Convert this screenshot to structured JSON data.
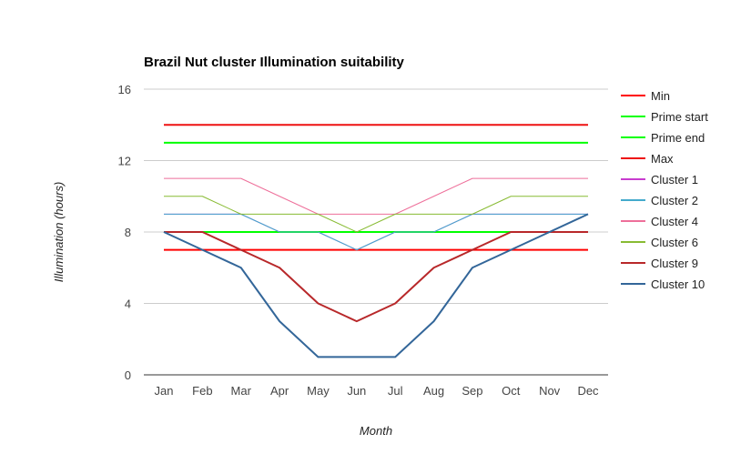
{
  "chart_data": {
    "type": "line",
    "title": "Brazil Nut cluster Illumination suitability",
    "xlabel": "Month",
    "ylabel": "Illumination (hours)",
    "ylim": [
      0,
      16
    ],
    "yticks": [
      "0",
      "4",
      "8",
      "12",
      "16"
    ],
    "grid": true,
    "legend_position": "right",
    "categories": [
      "Jan",
      "Feb",
      "Mar",
      "Apr",
      "May",
      "Jun",
      "Jul",
      "Aug",
      "Sep",
      "Oct",
      "Nov",
      "Dec"
    ],
    "series": [
      {
        "name": "Min",
        "color": "#ff0000",
        "width": 2,
        "values": [
          7,
          7,
          7,
          7,
          7,
          7,
          7,
          7,
          7,
          7,
          7,
          7
        ]
      },
      {
        "name": "Prime start",
        "color": "#00ff00",
        "width": 2,
        "values": [
          8,
          8,
          8,
          8,
          8,
          8,
          8,
          8,
          8,
          8,
          8,
          8
        ]
      },
      {
        "name": "Prime end",
        "color": "#00ff00",
        "width": 2,
        "values": [
          13,
          13,
          13,
          13,
          13,
          13,
          13,
          13,
          13,
          13,
          13,
          13
        ]
      },
      {
        "name": "Max",
        "color": "#ee1111",
        "width": 2,
        "values": [
          14,
          14,
          14,
          14,
          14,
          14,
          14,
          14,
          14,
          14,
          14,
          14
        ]
      },
      {
        "name": "Cluster 1",
        "color": "#c83ccf",
        "width": 1,
        "values": [
          9,
          9,
          9,
          8,
          8,
          7,
          8,
          8,
          9,
          9,
          9,
          9
        ]
      },
      {
        "name": "Cluster 2",
        "color": "#44aacc",
        "width": 1,
        "values": [
          9,
          9,
          9,
          8,
          8,
          7,
          8,
          8,
          9,
          9,
          9,
          9
        ]
      },
      {
        "name": "Cluster 4",
        "color": "#ee6f9a",
        "width": 1,
        "values": [
          11,
          11,
          11,
          10,
          9,
          9,
          9,
          10,
          11,
          11,
          11,
          11
        ]
      },
      {
        "name": "Cluster 6",
        "color": "#88bb33",
        "width": 1,
        "values": [
          10,
          10,
          9,
          9,
          9,
          8,
          9,
          9,
          9,
          10,
          10,
          10
        ]
      },
      {
        "name": "Cluster 9",
        "color": "#b8282a",
        "width": 2,
        "values": [
          8,
          8,
          7,
          6,
          4,
          3,
          4,
          6,
          7,
          8,
          8,
          8
        ]
      },
      {
        "name": "Cluster 10",
        "color": "#336699",
        "width": 2,
        "values": [
          8,
          7,
          6,
          3,
          1,
          1,
          1,
          3,
          6,
          7,
          8,
          9
        ]
      }
    ]
  }
}
